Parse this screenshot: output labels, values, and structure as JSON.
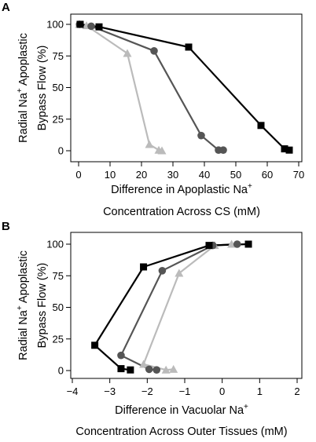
{
  "chart_data": [
    {
      "panel": "A",
      "type": "line",
      "xlabel_line1": "Difference in Apoplastic Na",
      "xlabel_line1_sup": "+",
      "xlabel_line2": "Concentration Across CS (mM)",
      "ylabel_line1": "Radial Na",
      "ylabel_line1_sup": "+",
      "ylabel_line1_rest": " Apoplastic",
      "ylabel_line2": "Bypass Flow (%)",
      "xlim": [
        0,
        70
      ],
      "ylim": [
        0,
        100
      ],
      "xticks": [
        0,
        10,
        20,
        30,
        40,
        50,
        60,
        70
      ],
      "yticks": [
        0,
        25,
        50,
        75,
        100
      ],
      "series": [
        {
          "marker": "square",
          "color": "#000000",
          "points": [
            [
              0.5,
              100
            ],
            [
              6.5,
              98
            ],
            [
              35,
              82
            ],
            [
              58,
              20
            ],
            [
              65.5,
              1.5
            ],
            [
              67,
              0.5
            ]
          ]
        },
        {
          "marker": "circle",
          "color": "#555555",
          "points": [
            [
              0.3,
              100
            ],
            [
              4,
              98.5
            ],
            [
              24,
              79
            ],
            [
              39,
              12
            ],
            [
              44.5,
              0.5
            ],
            [
              46,
              0.5
            ]
          ]
        },
        {
          "marker": "triangle",
          "color": "#bbbbbb",
          "points": [
            [
              0.2,
              100
            ],
            [
              2.5,
              99
            ],
            [
              15.5,
              77
            ],
            [
              22.5,
              5
            ],
            [
              25.5,
              0.5
            ],
            [
              26.5,
              0
            ]
          ]
        }
      ]
    },
    {
      "panel": "B",
      "type": "line",
      "xlabel_line1": "Difference in Vacuolar Na",
      "xlabel_line1_sup": "+",
      "xlabel_line2": "Concentration Across Outer Tissues (mM)",
      "ylabel_line1": "Radial Na",
      "ylabel_line1_sup": "+",
      "ylabel_line1_rest": " Apoplastic",
      "ylabel_line2": "Bypass Flow (%)",
      "xlim": [
        -4,
        2
      ],
      "ylim": [
        0,
        100
      ],
      "xticks": [
        -4,
        -3,
        -2,
        -1,
        0,
        1,
        2
      ],
      "xtick_labels": [
        "−4",
        "−3",
        "−2",
        "−1",
        "0",
        "1",
        "2"
      ],
      "yticks": [
        0,
        25,
        50,
        75,
        100
      ],
      "series": [
        {
          "marker": "square",
          "color": "#000000",
          "points": [
            [
              0.7,
              100
            ],
            [
              -0.35,
              99
            ],
            [
              -2.1,
              82
            ],
            [
              -3.4,
              20
            ],
            [
              -2.7,
              1.5
            ],
            [
              -2.45,
              0.5
            ]
          ]
        },
        {
          "marker": "circle",
          "color": "#555555",
          "points": [
            [
              0.4,
              100
            ],
            [
              -0.25,
              99
            ],
            [
              -1.6,
              79
            ],
            [
              -2.7,
              12
            ],
            [
              -1.95,
              1
            ],
            [
              -1.75,
              0.5
            ]
          ]
        },
        {
          "marker": "triangle",
          "color": "#bbbbbb",
          "points": [
            [
              0.25,
              100
            ],
            [
              -0.2,
              99
            ],
            [
              -1.15,
              77
            ],
            [
              -2.1,
              5
            ],
            [
              -1.5,
              0.5
            ],
            [
              -1.3,
              1
            ]
          ]
        }
      ]
    }
  ]
}
